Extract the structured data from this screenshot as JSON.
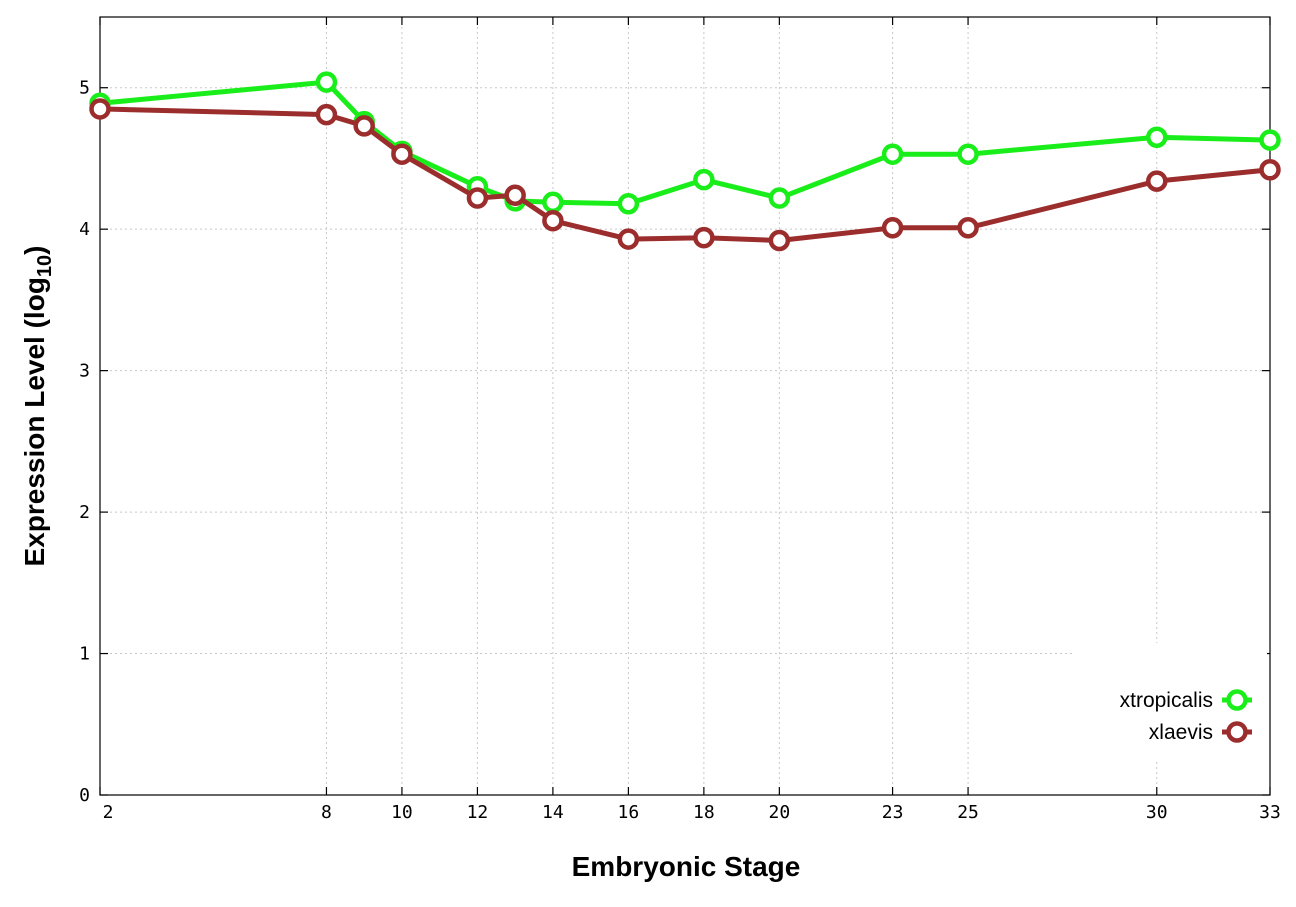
{
  "chart_data": {
    "type": "line",
    "xlabel": "Embryonic Stage",
    "ylabel_main": "Expression Level (log",
    "ylabel_sub": "10",
    "ylabel_close": ")",
    "x_ticks": [
      2,
      8,
      10,
      12,
      14,
      16,
      18,
      20,
      23,
      25,
      30,
      33
    ],
    "y_ticks": [
      0,
      1,
      2,
      3,
      4,
      5
    ],
    "xlim": [
      2,
      33
    ],
    "ylim": [
      0,
      5.5
    ],
    "grid": true,
    "legend_position": "bottom-right",
    "x": [
      2,
      8,
      9,
      10,
      12,
      13,
      14,
      16,
      18,
      20,
      23,
      25,
      30,
      33
    ],
    "series": [
      {
        "name": "xtropicalis",
        "color": "#1aee1a",
        "values": [
          4.89,
          5.04,
          4.76,
          4.55,
          4.3,
          4.2,
          4.19,
          4.18,
          4.35,
          4.22,
          4.53,
          4.53,
          4.65,
          4.63
        ]
      },
      {
        "name": "xlaevis",
        "color": "#9b2d2d",
        "values": [
          4.85,
          4.81,
          4.73,
          4.53,
          4.22,
          4.24,
          4.06,
          3.93,
          3.94,
          3.92,
          4.01,
          4.01,
          4.34,
          4.42
        ]
      }
    ]
  }
}
